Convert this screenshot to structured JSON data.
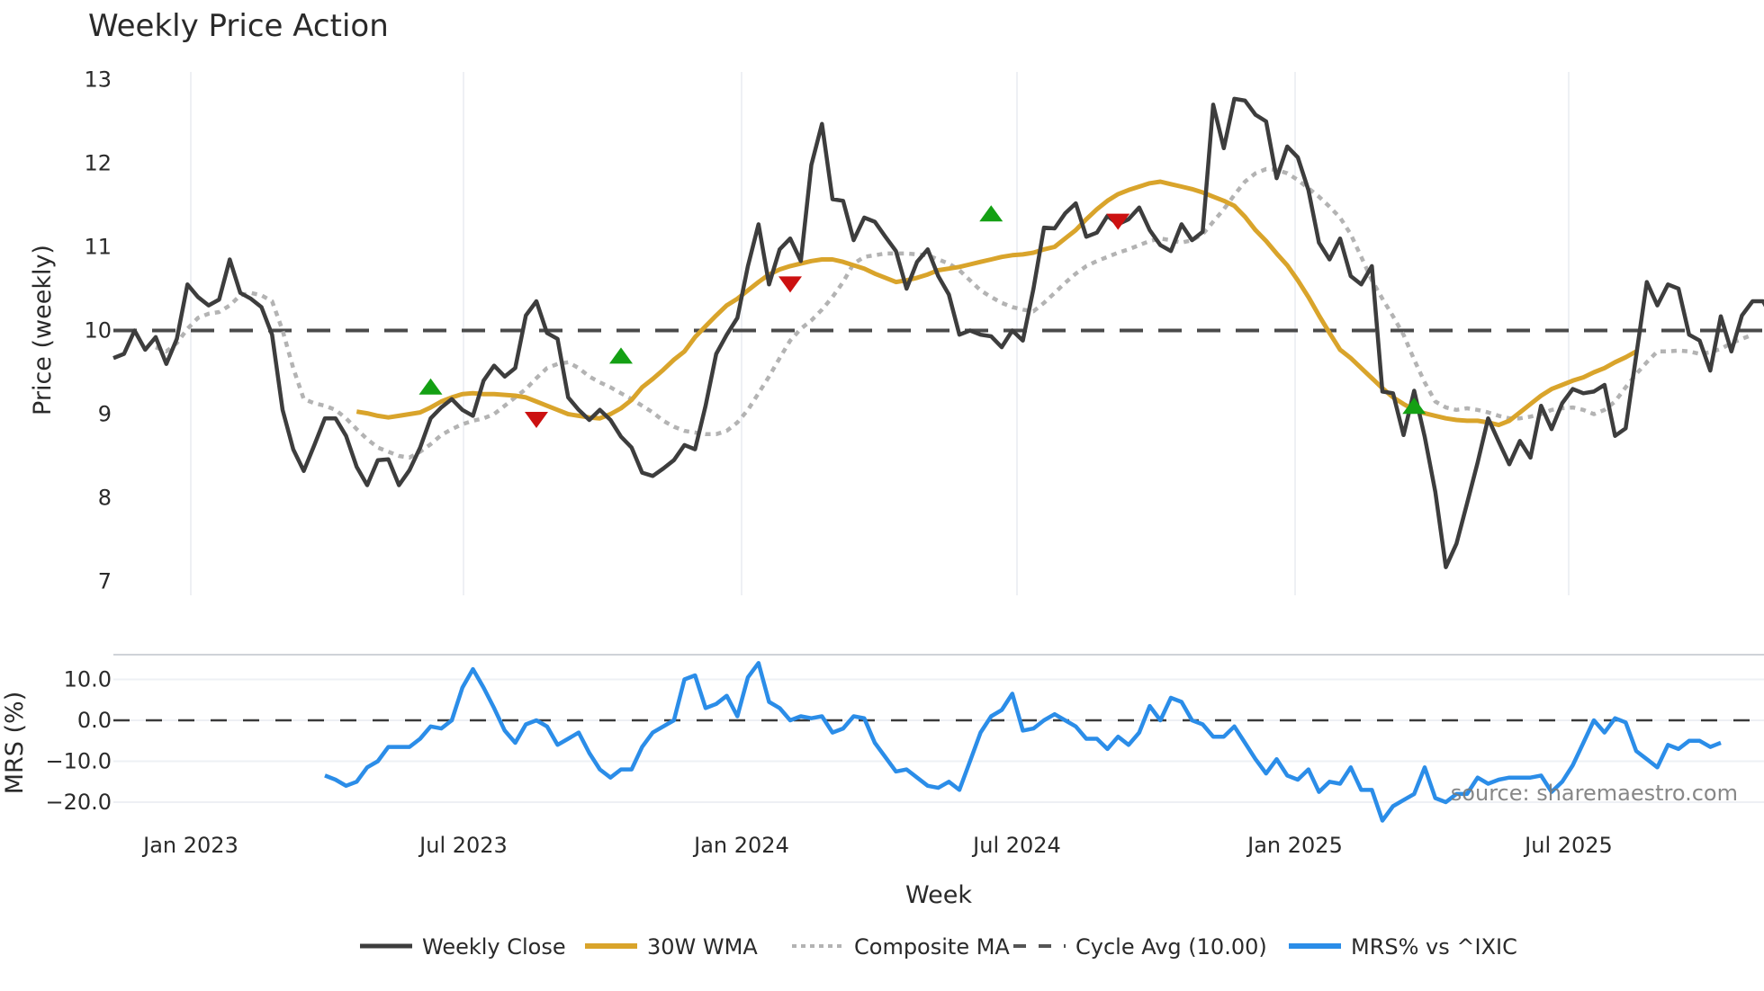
{
  "title": "Weekly Price Action",
  "colors": {
    "close": "#3d3d3d",
    "wma": "#d9a42b",
    "composite": "#b3b3b3",
    "cycle": "#4a4a4a",
    "mrs": "#2b8de8",
    "buy": "#14a014",
    "sell": "#cc1111",
    "grid": "#eef0f4"
  },
  "watermark": "source: sharemaestro.com",
  "legend": {
    "items": [
      {
        "label": "Weekly Close",
        "style": "solid-dark"
      },
      {
        "label": "30W WMA",
        "style": "solid-gold"
      },
      {
        "label": "Composite MA",
        "style": "dotted-gray"
      },
      {
        "label": "Cycle Avg (10.00)",
        "style": "dashed-dark"
      },
      {
        "label": "MRS% vs ^IXIC",
        "style": "solid-blue"
      }
    ]
  },
  "chart_data": [
    {
      "type": "line",
      "title": "Weekly Price Action",
      "xlabel": "",
      "ylabel": "Price (weekly)",
      "ylim": [
        6.85,
        13.1
      ],
      "yticks": [
        7,
        8,
        9,
        10,
        11,
        12,
        13
      ],
      "xticks": [
        "Jan 2023",
        "Jul 2023",
        "Jan 2024",
        "Jul 2024",
        "Jan 2025",
        "Jul 2025"
      ],
      "grid": true,
      "legend_position": "bottom",
      "x_note": "weekly index 0..157, week 0 ≈ mid-Nov 2022",
      "series": [
        {
          "name": "Weekly Close",
          "start_index": 0,
          "values": [
            9.67,
            9.72,
            10.0,
            9.77,
            9.92,
            9.6,
            9.9,
            10.55,
            10.4,
            10.3,
            10.37,
            10.85,
            10.45,
            10.38,
            10.28,
            9.95,
            9.05,
            8.58,
            8.32,
            8.63,
            8.95,
            8.95,
            8.74,
            8.37,
            8.15,
            8.45,
            8.46,
            8.15,
            8.33,
            8.6,
            8.95,
            9.08,
            9.18,
            9.05,
            8.98,
            9.4,
            9.58,
            9.45,
            9.55,
            10.18,
            10.35,
            9.97,
            9.9,
            9.2,
            9.05,
            8.93,
            9.05,
            8.93,
            8.73,
            8.6,
            8.3,
            8.26,
            8.35,
            8.45,
            8.63,
            8.58,
            9.1,
            9.72,
            9.95,
            10.15,
            10.77,
            11.27,
            10.55,
            10.97,
            11.1,
            10.83,
            11.98,
            12.47,
            11.57,
            11.55,
            11.08,
            11.35,
            11.3,
            11.12,
            10.95,
            10.5,
            10.82,
            10.97,
            10.65,
            10.43,
            9.95,
            10.0,
            9.95,
            9.93,
            9.8,
            10.0,
            9.88,
            10.5,
            11.23,
            11.22,
            11.4,
            11.52,
            11.12,
            11.17,
            11.37,
            11.27,
            11.33,
            11.47,
            11.2,
            11.02,
            10.95,
            11.27,
            11.08,
            11.18,
            12.7,
            12.18,
            12.77,
            12.75,
            12.58,
            12.5,
            11.82,
            12.2,
            12.07,
            11.68,
            11.05,
            10.85,
            11.1,
            10.65,
            10.55,
            10.77,
            9.27,
            9.25,
            8.75,
            9.28,
            8.73,
            8.07,
            7.17,
            7.45,
            7.93,
            8.42,
            8.95,
            8.67,
            8.4,
            8.68,
            8.48,
            9.1,
            8.82,
            9.13,
            9.3,
            9.25,
            9.27,
            9.35,
            8.74,
            8.83,
            9.7,
            10.58,
            10.3,
            10.55,
            10.5,
            9.95,
            9.88,
            9.52,
            10.17,
            9.75,
            10.18,
            10.35,
            10.35,
            10.12
          ]
        },
        {
          "name": "30W WMA",
          "start_index": 23,
          "values": [
            9.03,
            9.01,
            8.98,
            8.96,
            8.98,
            9.0,
            9.02,
            9.08,
            9.15,
            9.2,
            9.24,
            9.25,
            9.24,
            9.24,
            9.23,
            9.22,
            9.2,
            9.15,
            9.1,
            9.05,
            9.0,
            8.98,
            8.96,
            8.95,
            9.0,
            9.07,
            9.17,
            9.32,
            9.42,
            9.53,
            9.65,
            9.75,
            9.92,
            10.05,
            10.18,
            10.3,
            10.38,
            10.48,
            10.58,
            10.67,
            10.73,
            10.77,
            10.8,
            10.83,
            10.85,
            10.85,
            10.82,
            10.78,
            10.74,
            10.68,
            10.63,
            10.58,
            10.6,
            10.63,
            10.67,
            10.72,
            10.74,
            10.76,
            10.79,
            10.82,
            10.85,
            10.88,
            10.9,
            10.91,
            10.93,
            10.97,
            11.0,
            11.1,
            11.2,
            11.33,
            11.45,
            11.55,
            11.63,
            11.68,
            11.72,
            11.76,
            11.78,
            11.75,
            11.72,
            11.69,
            11.65,
            11.6,
            11.55,
            11.49,
            11.36,
            11.2,
            11.07,
            10.92,
            10.78,
            10.6,
            10.4,
            10.18,
            9.97,
            9.77,
            9.67,
            9.55,
            9.43,
            9.31,
            9.2,
            9.12,
            9.05,
            9.01,
            8.98,
            8.95,
            8.93,
            8.92,
            8.92,
            8.9,
            8.87,
            8.92,
            9.02,
            9.12,
            9.22,
            9.3,
            9.35,
            9.4,
            9.44,
            9.5,
            9.55,
            9.62,
            9.68,
            9.75
          ]
        },
        {
          "name": "Composite MA",
          "start_index": 4,
          "values": [
            9.8,
            9.75,
            9.85,
            10.02,
            10.15,
            10.2,
            10.22,
            10.3,
            10.42,
            10.45,
            10.42,
            10.35,
            10.0,
            9.55,
            9.18,
            9.13,
            9.1,
            9.05,
            8.95,
            8.82,
            8.7,
            8.6,
            8.55,
            8.5,
            8.48,
            8.55,
            8.64,
            8.75,
            8.82,
            8.88,
            8.92,
            8.95,
            9.0,
            9.1,
            9.2,
            9.3,
            9.43,
            9.55,
            9.6,
            9.62,
            9.55,
            9.45,
            9.38,
            9.32,
            9.25,
            9.18,
            9.1,
            9.02,
            8.92,
            8.85,
            8.8,
            8.78,
            8.76,
            8.76,
            8.8,
            8.9,
            9.05,
            9.25,
            9.45,
            9.67,
            9.88,
            10.02,
            10.12,
            10.25,
            10.4,
            10.58,
            10.8,
            10.88,
            10.9,
            10.92,
            10.92,
            10.92,
            10.91,
            10.9,
            10.85,
            10.8,
            10.72,
            10.6,
            10.48,
            10.4,
            10.33,
            10.28,
            10.25,
            10.23,
            10.33,
            10.45,
            10.57,
            10.68,
            10.77,
            10.83,
            10.88,
            10.93,
            10.97,
            11.02,
            11.07,
            11.1,
            11.08,
            11.05,
            11.08,
            11.15,
            11.3,
            11.45,
            11.62,
            11.78,
            11.88,
            11.93,
            11.92,
            11.88,
            11.8,
            11.7,
            11.6,
            11.48,
            11.35,
            11.15,
            10.88,
            10.6,
            10.38,
            10.17,
            9.95,
            9.65,
            9.38,
            9.15,
            9.08,
            9.05,
            9.07,
            9.05,
            9.02,
            8.98,
            8.95,
            8.95,
            8.97,
            9.0,
            9.05,
            9.07,
            9.08,
            9.05,
            9.0,
            9.05,
            9.15,
            9.32,
            9.48,
            9.62,
            9.75,
            9.75,
            9.76,
            9.75,
            9.72,
            9.74,
            9.78,
            9.85,
            9.9,
            9.95
          ]
        },
        {
          "name": "Cycle Avg (10.00)",
          "constant": 10.0
        }
      ],
      "markers": [
        {
          "type": "buy",
          "index": 30,
          "value": 9.33
        },
        {
          "type": "sell",
          "index": 40,
          "value": 8.93
        },
        {
          "type": "buy",
          "index": 48,
          "value": 9.7
        },
        {
          "type": "sell",
          "index": 64,
          "value": 10.55
        },
        {
          "type": "buy",
          "index": 83,
          "value": 11.4
        },
        {
          "type": "sell",
          "index": 95,
          "value": 11.3
        },
        {
          "type": "buy",
          "index": 123,
          "value": 9.1
        }
      ]
    },
    {
      "type": "line",
      "title": "",
      "xlabel": "Week",
      "ylabel": "MRS (%)",
      "ylim": [
        -24,
        16
      ],
      "yticks": [
        -20,
        -10,
        0,
        10
      ],
      "ytick_labels": [
        "−20.0",
        "−10.0",
        "0.0",
        "10.0"
      ],
      "xticks": [
        "Jan 2023",
        "Jul 2023",
        "Jan 2024",
        "Jul 2024",
        "Jan 2025",
        "Jul 2025"
      ],
      "grid": true,
      "series": [
        {
          "name": "MRS% vs ^IXIC",
          "start_index": 20,
          "values": [
            -13.5,
            -14.5,
            -16.0,
            -15.0,
            -11.5,
            -10.0,
            -6.5,
            -6.5,
            -6.5,
            -4.5,
            -1.5,
            -2.0,
            0.0,
            8.0,
            12.5,
            8.0,
            3.0,
            -2.5,
            -5.5,
            -1.0,
            0.0,
            -1.5,
            -6.0,
            -4.5,
            -3.0,
            -8.0,
            -12.0,
            -14.0,
            -12.0,
            -12.0,
            -6.5,
            -3.0,
            -1.5,
            0.0,
            10.0,
            11.0,
            3.0,
            4.0,
            6.0,
            1.0,
            10.5,
            14.0,
            4.5,
            3.0,
            0.0,
            1.0,
            0.5,
            1.0,
            -3.0,
            -2.0,
            1.0,
            0.5,
            -5.5,
            -9.0,
            -12.5,
            -12.0,
            -14.0,
            -16.0,
            -16.5,
            -15.0,
            -17.0,
            -10.0,
            -3.0,
            1.0,
            2.5,
            6.5,
            -2.5,
            -2.0,
            0.0,
            1.5,
            0.0,
            -1.5,
            -4.5,
            -4.5,
            -7.0,
            -4.0,
            -6.0,
            -3.0,
            3.5,
            0.0,
            5.5,
            4.5,
            0.0,
            -1.0,
            -4.0,
            -4.0,
            -1.5,
            -5.5,
            -9.5,
            -13.0,
            -9.5,
            -13.5,
            -14.5,
            -12.0,
            -17.5,
            -15.0,
            -15.5,
            -11.5,
            -17.0,
            -17.0,
            -24.5,
            -21.0,
            -19.5,
            -18.0,
            -11.5,
            -19.0,
            -20.0,
            -18.0,
            -18.0,
            -14.0,
            -15.5,
            -14.5,
            -14.0,
            -14.0,
            -14.0,
            -13.5,
            -17.5,
            -15.0,
            -11.0,
            -5.5,
            0.0,
            -3.0,
            0.5,
            -0.5,
            -7.5,
            -9.5,
            -11.5,
            -6.0,
            -7.0,
            -5.0,
            -5.0,
            -6.5,
            -5.5
          ]
        },
        {
          "name": "Zero line",
          "constant": 0.0
        }
      ]
    }
  ]
}
